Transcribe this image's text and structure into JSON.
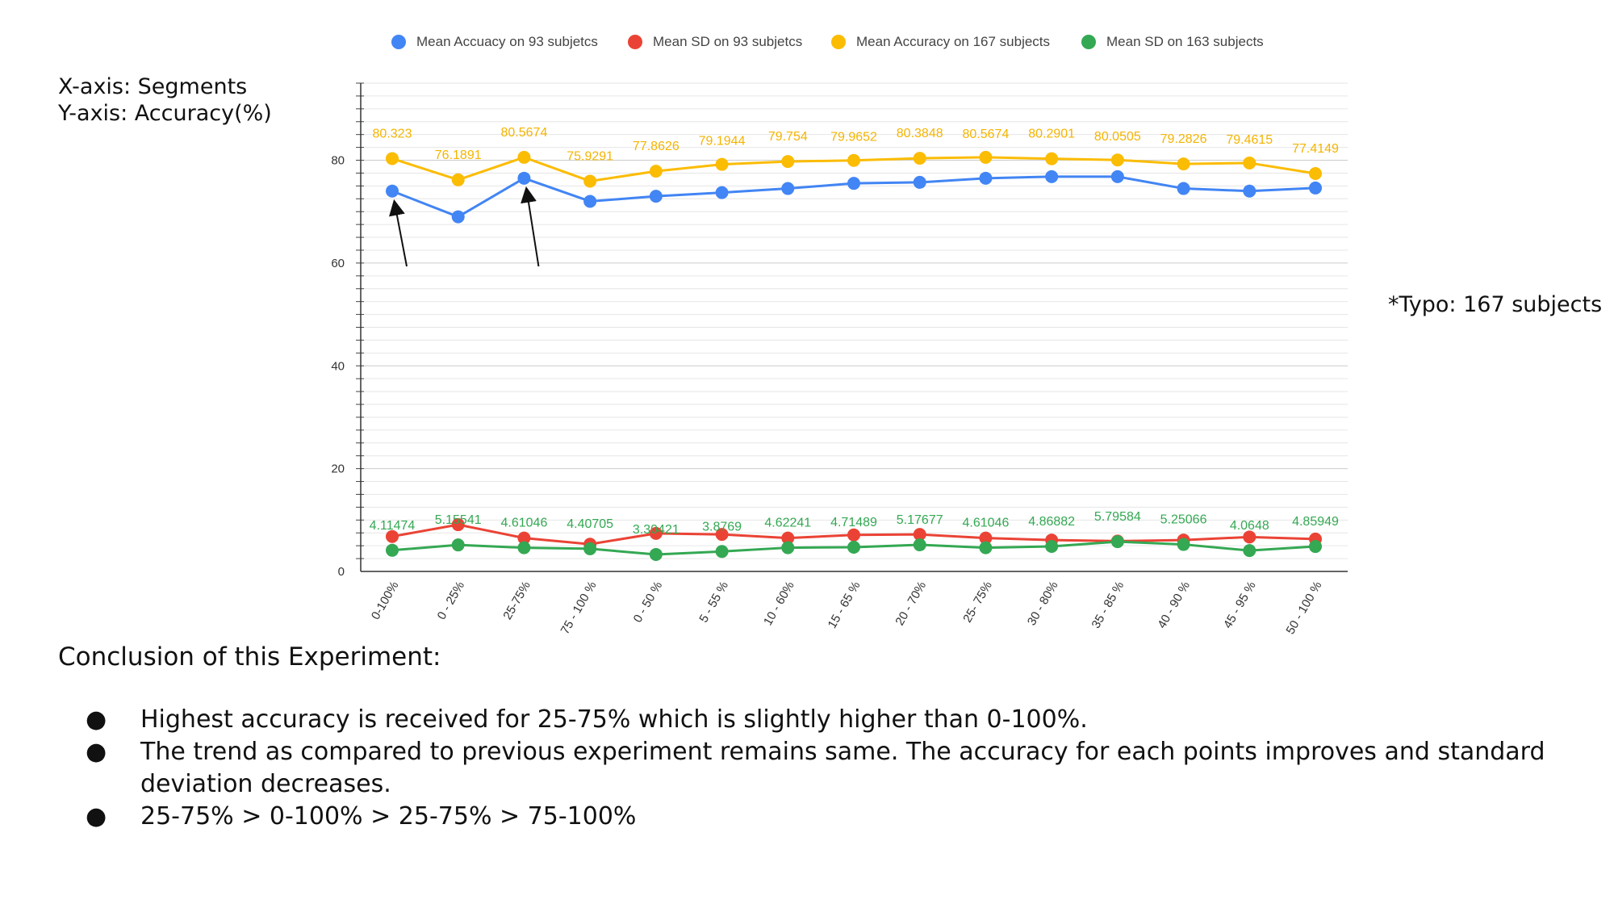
{
  "notes": {
    "xaxis": "X-axis: Segments",
    "yaxis": "Y-axis: Accuracy(%)",
    "typo": "*Typo: 167 subjects"
  },
  "chart_data": {
    "type": "line",
    "categories": [
      "0-100%",
      "0 - 25%",
      "25-75%",
      "75 - 100 %",
      "0 - 50 %",
      "5 - 55 %",
      "10 - 60%",
      "15 - 65 %",
      "20 - 70%",
      "25- 75%",
      "30 - 80%",
      "35 - 85 %",
      "40 - 90 %",
      "45 - 95 %",
      "50 - 100 %"
    ],
    "ylim": [
      0,
      95
    ],
    "yticks": [
      0,
      20,
      40,
      60,
      80
    ],
    "grid": true,
    "legend_position": "top",
    "series": [
      {
        "name": "Mean Accuacy on 93 subjetcs",
        "color": "#4285F4",
        "values": [
          74,
          69,
          76.5,
          72,
          73,
          73.7,
          74.5,
          75.5,
          75.7,
          76.5,
          76.8,
          76.8,
          74.5,
          74,
          74.6
        ],
        "labels": []
      },
      {
        "name": "Mean SD on 93 subjetcs",
        "color": "#EA4335",
        "values": [
          6.8,
          9.1,
          6.5,
          5.3,
          7.4,
          7.2,
          6.5,
          7.1,
          7.2,
          6.5,
          6.1,
          5.9,
          6.1,
          6.7,
          6.3
        ],
        "labels": []
      },
      {
        "name": "Mean Accuracy on 167 subjects",
        "color": "#FBBC04",
        "values": [
          80.323,
          76.1891,
          80.5674,
          75.9291,
          77.8626,
          79.1944,
          79.754,
          79.9652,
          80.3848,
          80.5674,
          80.2901,
          80.0505,
          79.2826,
          79.4615,
          77.4149
        ],
        "labels": [
          "80.323",
          "76.1891",
          "80.5674",
          "75.9291",
          "77.8626",
          "79.1944",
          "79.754",
          "79.9652",
          "80.3848",
          "80.5674",
          "80.2901",
          "80.0505",
          "79.2826",
          "79.4615",
          "77.4149"
        ]
      },
      {
        "name": "Mean SD on 163 subjects",
        "color": "#34A853",
        "values": [
          4.11474,
          5.15541,
          4.61046,
          4.40705,
          3.30421,
          3.8769,
          4.62241,
          4.71489,
          5.17677,
          4.61046,
          4.86882,
          5.79584,
          5.25066,
          4.0648,
          4.85949
        ],
        "labels": [
          "4.11474",
          "5.15541",
          "4.61046",
          "4.40705",
          "3.30421",
          "3.8769",
          "4.62241",
          "4.71489",
          "5.17677",
          "4.61046",
          "4.86882",
          "5.79584",
          "5.25066",
          "4.0648",
          "4.85949"
        ]
      }
    ],
    "annotations": [
      {
        "type": "arrow",
        "target_category": "0-100%",
        "target_series": "Mean Accuacy on 93 subjetcs"
      },
      {
        "type": "arrow",
        "target_category": "25-75%",
        "target_series": "Mean Accuacy on 93 subjetcs"
      }
    ]
  },
  "conclusion": {
    "title": "Conclusion of this Experiment:",
    "bullet_glyph": "●",
    "bullets": [
      "Highest accuracy is received for 25-75% which is slightly higher than 0-100%.",
      "The trend as compared to previous experiment remains same. The accuracy for each points improves and standard deviation decreases.",
      "25-75% > 0-100% > 25-75% > 75-100%"
    ]
  }
}
